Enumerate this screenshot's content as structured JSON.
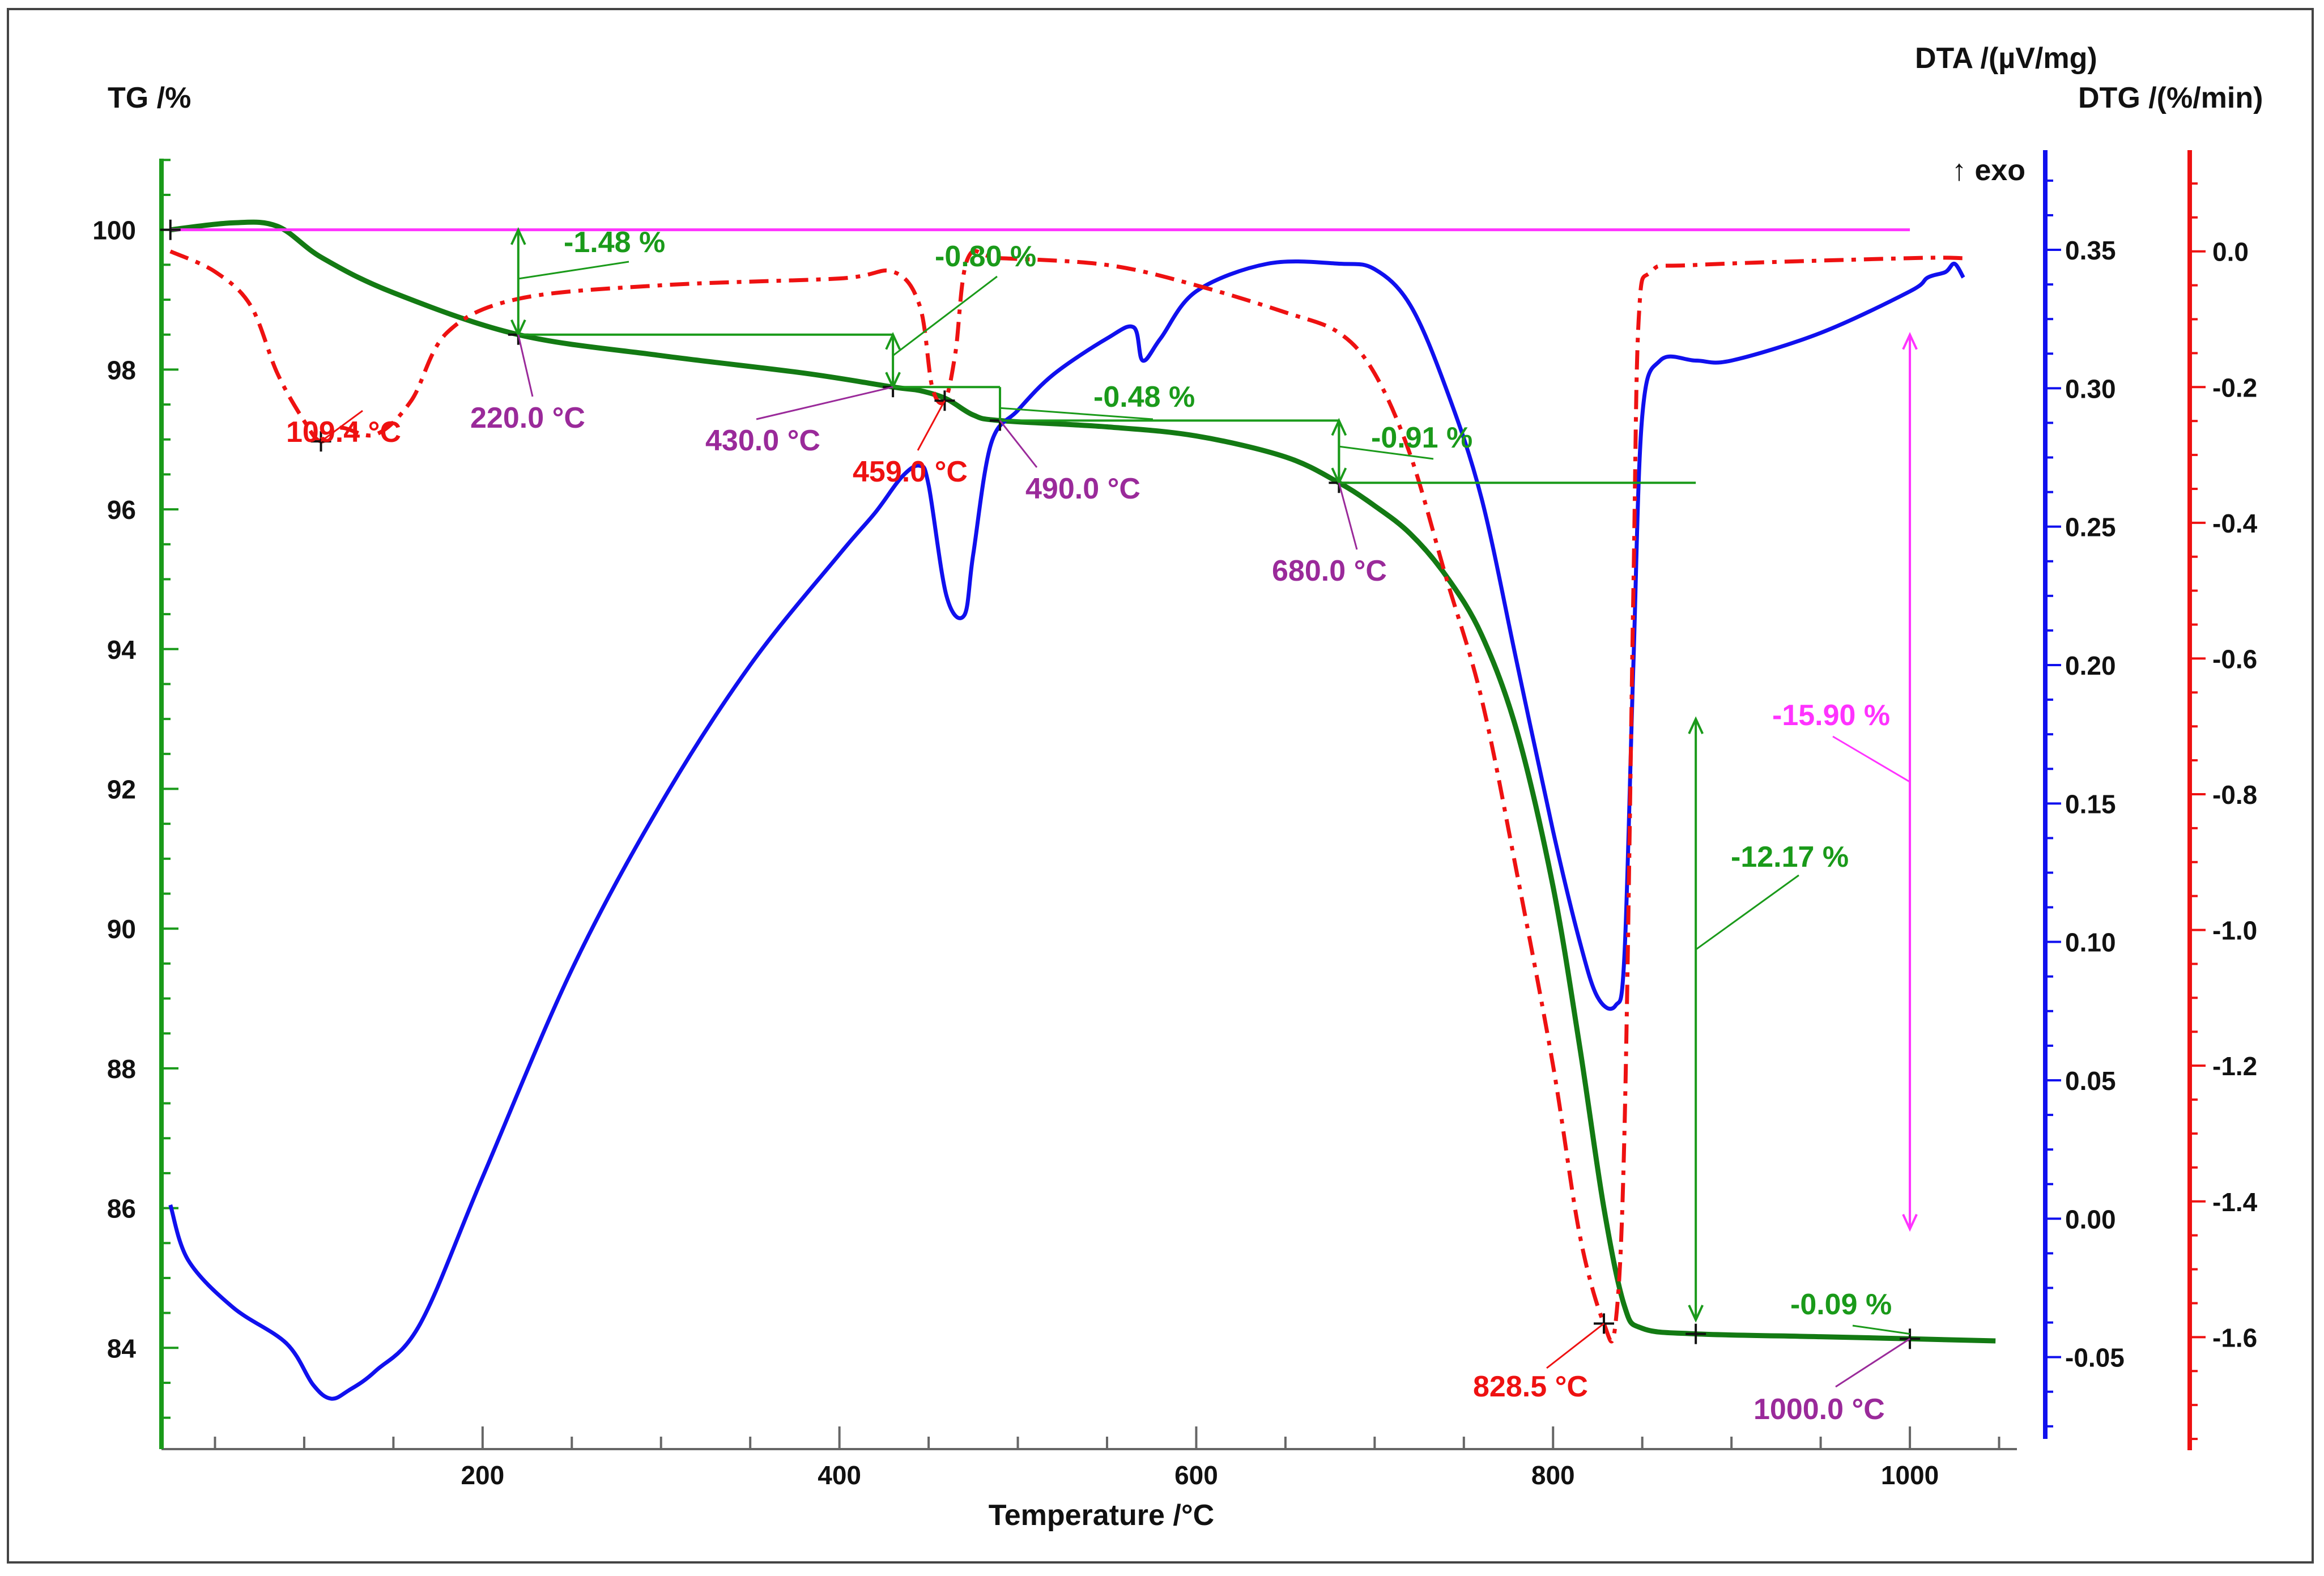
{
  "chart_data": {
    "type": "line",
    "axes": {
      "x": {
        "label": "Temperature /°C",
        "range": [
          20,
          1060
        ],
        "ticks": [
          200,
          400,
          600,
          800,
          1000
        ],
        "tick_labels": [
          "200",
          "400",
          "600",
          "800",
          "1000"
        ]
      },
      "tg": {
        "label": "TG /%",
        "range": [
          82.6,
          101.1
        ],
        "ticks": [
          84,
          86,
          88,
          90,
          92,
          94,
          96,
          98,
          100
        ],
        "tick_labels": [
          "84",
          "86",
          "88",
          "90",
          "92",
          "94",
          "96",
          "98",
          "100"
        ],
        "color": "#1a9a1a"
      },
      "dta": {
        "label": "DTA /(µV/mg)",
        "range": [
          -0.082,
          0.385
        ],
        "ticks": [
          -0.05,
          0.0,
          0.05,
          0.1,
          0.15,
          0.2,
          0.25,
          0.3,
          0.35
        ],
        "tick_labels": [
          "-0.05",
          "0.00",
          "0.05",
          "0.10",
          "0.15",
          "0.20",
          "0.25",
          "0.30",
          "0.35"
        ],
        "color": "#1010ee",
        "exo_marker": "↑ exo"
      },
      "dtg": {
        "label": "DTG /(%/min)",
        "range": [
          -1.76,
          0.145
        ],
        "ticks": [
          0.0,
          -0.2,
          -0.4,
          -0.6,
          -0.8,
          -1.0,
          -1.2,
          -1.4,
          -1.6
        ],
        "tick_labels": [
          "0.0",
          "-0.2",
          "-0.4",
          "-0.6",
          "-0.8",
          "-1.0",
          "-1.2",
          "-1.4",
          "-1.6"
        ],
        "color": "#ee1111"
      }
    },
    "series": [
      {
        "kind": "TG",
        "color": "#137a13",
        "x": [
          25,
          60,
          85,
          110,
          150,
          220,
          300,
          380,
          430,
          445,
          460,
          475,
          490,
          550,
          600,
          650,
          680,
          700,
          720,
          740,
          760,
          780,
          800,
          815,
          828.5,
          840,
          850,
          880,
          950,
          1000,
          1048
        ],
        "y": [
          100.0,
          100.1,
          100.05,
          99.6,
          99.1,
          98.5,
          98.2,
          97.95,
          97.75,
          97.7,
          97.58,
          97.35,
          97.27,
          97.18,
          97.05,
          96.75,
          96.38,
          96.05,
          95.65,
          95.05,
          94.2,
          92.8,
          90.6,
          88.3,
          86.0,
          84.6,
          84.28,
          84.2,
          84.16,
          84.13,
          84.1
        ]
      },
      {
        "kind": "DTA",
        "color": "#1010ee",
        "x": [
          25,
          35,
          60,
          90,
          105,
          115,
          125,
          140,
          165,
          200,
          250,
          300,
          350,
          400,
          420,
          435,
          445,
          450,
          460,
          470,
          475,
          485,
          500,
          520,
          550,
          565,
          570,
          580,
          600,
          640,
          680,
          700,
          720,
          740,
          760,
          780,
          800,
          815,
          825,
          835,
          840,
          845,
          850,
          860,
          880,
          900,
          950,
          1000,
          1010,
          1020,
          1025,
          1030
        ],
        "y": [
          0.005,
          -0.015,
          -0.032,
          -0.045,
          -0.06,
          -0.065,
          -0.062,
          -0.055,
          -0.038,
          0.015,
          0.09,
          0.15,
          0.2,
          0.24,
          0.255,
          0.268,
          0.272,
          0.265,
          0.225,
          0.218,
          0.24,
          0.28,
          0.292,
          0.305,
          0.318,
          0.322,
          0.31,
          0.318,
          0.335,
          0.345,
          0.345,
          0.343,
          0.33,
          0.3,
          0.26,
          0.2,
          0.14,
          0.1,
          0.08,
          0.077,
          0.095,
          0.2,
          0.29,
          0.31,
          0.31,
          0.31,
          0.32,
          0.335,
          0.34,
          0.342,
          0.345,
          0.34
        ]
      },
      {
        "kind": "DTG",
        "color": "#ee1111",
        "x": [
          25,
          50,
          70,
          85,
          100,
          109.4,
          120,
          140,
          160,
          180,
          220,
          300,
          400,
          430,
          445,
          452,
          459,
          465,
          472,
          490,
          550,
          600,
          650,
          680,
          700,
          720,
          740,
          760,
          780,
          800,
          815,
          828.5,
          835,
          840,
          845,
          848,
          855,
          880,
          1000,
          1030
        ],
        "y": [
          -0.0,
          -0.03,
          -0.08,
          -0.18,
          -0.25,
          -0.28,
          -0.26,
          -0.27,
          -0.22,
          -0.12,
          -0.07,
          -0.05,
          -0.04,
          -0.03,
          -0.08,
          -0.2,
          -0.22,
          -0.15,
          -0.01,
          -0.01,
          -0.02,
          -0.05,
          -0.09,
          -0.12,
          -0.18,
          -0.3,
          -0.48,
          -0.66,
          -0.92,
          -1.2,
          -1.45,
          -1.58,
          -1.58,
          -1.3,
          -0.5,
          -0.1,
          -0.03,
          -0.02,
          -0.01,
          -0.01
        ]
      },
      {
        "kind": "reference",
        "color": "#ff33ff",
        "x": [
          25,
          1000
        ],
        "y": [
          100.0,
          100.0
        ]
      }
    ],
    "annotations": {
      "mass_changes": [
        "-1.48 %",
        "-0.80 %",
        "-0.48 %",
        "-0.91 %",
        "-12.17 %",
        "-0.09 %",
        "-15.90 %"
      ],
      "temperatures": [
        "109.4 °C",
        "220.0 °C",
        "430.0 °C",
        "459.0 °C",
        "490.0 °C",
        "680.0 °C",
        "828.5 °C",
        "1000.0 °C"
      ]
    }
  }
}
